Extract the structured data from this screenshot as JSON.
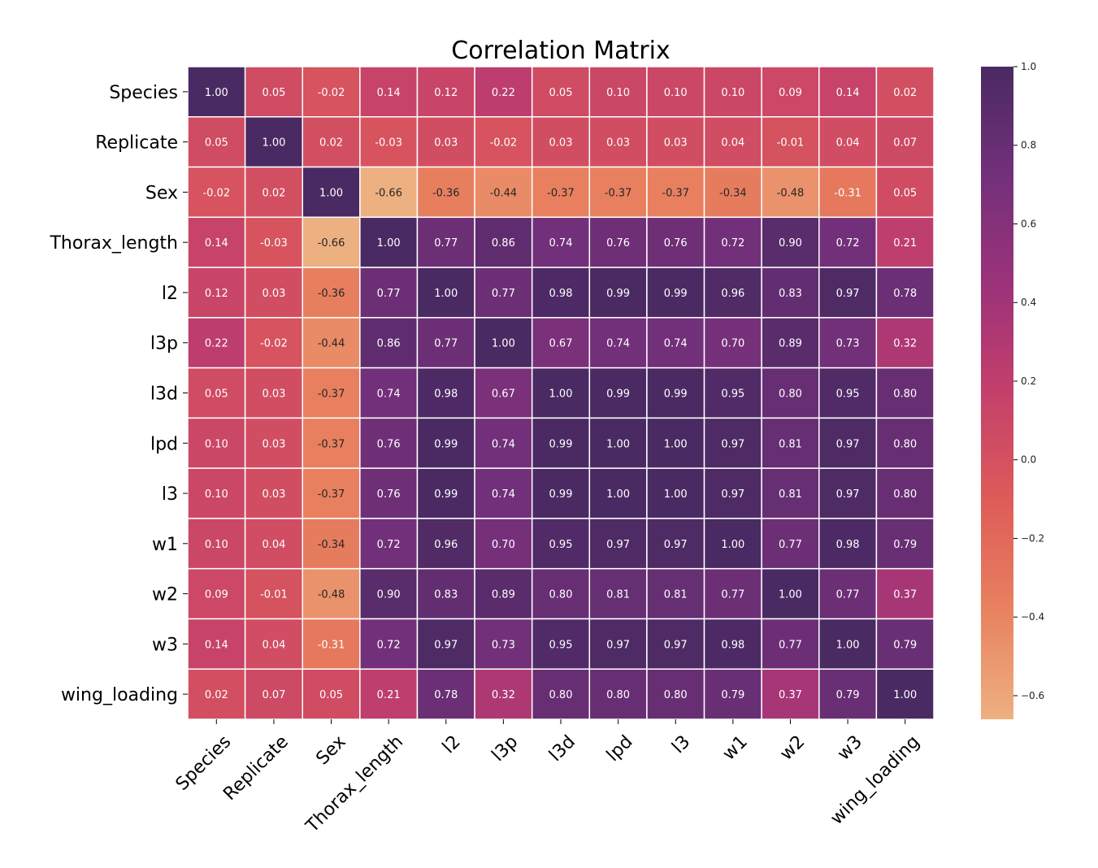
{
  "chart_data": {
    "type": "heatmap",
    "title": "Correlation Matrix",
    "labels": [
      "Species",
      "Replicate",
      "Sex",
      "Thorax_length",
      "l2",
      "l3p",
      "l3d",
      "lpd",
      "l3",
      "w1",
      "w2",
      "w3",
      "wing_loading"
    ],
    "value_labels": [
      [
        "1.00",
        "0.05",
        "-0.02",
        "0.14",
        "0.12",
        "0.22",
        "0.05",
        "0.10",
        "0.10",
        "0.10",
        "0.09",
        "0.14",
        "0.02"
      ],
      [
        "0.05",
        "1.00",
        "0.02",
        "-0.03",
        "0.03",
        "-0.02",
        "0.03",
        "0.03",
        "0.03",
        "0.04",
        "-0.01",
        "0.04",
        "0.07"
      ],
      [
        "-0.02",
        "0.02",
        "1.00",
        "-0.66",
        "-0.36",
        "-0.44",
        "-0.37",
        "-0.37",
        "-0.37",
        "-0.34",
        "-0.48",
        "-0.31",
        "0.05"
      ],
      [
        "0.14",
        "-0.03",
        "-0.66",
        "1.00",
        "0.77",
        "0.86",
        "0.74",
        "0.76",
        "0.76",
        "0.72",
        "0.90",
        "0.72",
        "0.21"
      ],
      [
        "0.12",
        "0.03",
        "-0.36",
        "0.77",
        "1.00",
        "0.77",
        "0.98",
        "0.99",
        "0.99",
        "0.96",
        "0.83",
        "0.97",
        "0.78"
      ],
      [
        "0.22",
        "-0.02",
        "-0.44",
        "0.86",
        "0.77",
        "1.00",
        "0.67",
        "0.74",
        "0.74",
        "0.70",
        "0.89",
        "0.73",
        "0.32"
      ],
      [
        "0.05",
        "0.03",
        "-0.37",
        "0.74",
        "0.98",
        "0.67",
        "1.00",
        "0.99",
        "0.99",
        "0.95",
        "0.80",
        "0.95",
        "0.80"
      ],
      [
        "0.10",
        "0.03",
        "-0.37",
        "0.76",
        "0.99",
        "0.74",
        "0.99",
        "1.00",
        "1.00",
        "0.97",
        "0.81",
        "0.97",
        "0.80"
      ],
      [
        "0.10",
        "0.03",
        "-0.37",
        "0.76",
        "0.99",
        "0.74",
        "0.99",
        "1.00",
        "1.00",
        "0.97",
        "0.81",
        "0.97",
        "0.80"
      ],
      [
        "0.10",
        "0.04",
        "-0.34",
        "0.72",
        "0.96",
        "0.70",
        "0.95",
        "0.97",
        "0.97",
        "1.00",
        "0.77",
        "0.98",
        "0.79"
      ],
      [
        "0.09",
        "-0.01",
        "-0.48",
        "0.90",
        "0.83",
        "0.89",
        "0.80",
        "0.81",
        "0.81",
        "0.77",
        "1.00",
        "0.77",
        "0.37"
      ],
      [
        "0.14",
        "0.04",
        "-0.31",
        "0.72",
        "0.97",
        "0.73",
        "0.95",
        "0.97",
        "0.97",
        "0.98",
        "0.77",
        "1.00",
        "0.79"
      ],
      [
        "0.02",
        "0.07",
        "0.05",
        "0.21",
        "0.78",
        "0.32",
        "0.80",
        "0.80",
        "0.80",
        "0.79",
        "0.37",
        "0.79",
        "1.00"
      ]
    ],
    "colorbar": {
      "min": -0.66,
      "max": 1.0,
      "ticks": [
        1.0,
        0.8,
        0.6,
        0.4,
        0.2,
        0.0,
        -0.2,
        -0.4,
        -0.6
      ],
      "tick_labels": [
        "1.0",
        "0.8",
        "0.6",
        "0.4",
        "0.2",
        "0.0",
        "−0.2",
        "−0.4",
        "−0.6"
      ],
      "colors": [
        "#edb081",
        "#e8825f",
        "#de5c59",
        "#c4406b",
        "#9c327a",
        "#73307a",
        "#4a2a63"
      ]
    },
    "xtick_rotation": 45,
    "cell_border_color": "#ffffff"
  }
}
